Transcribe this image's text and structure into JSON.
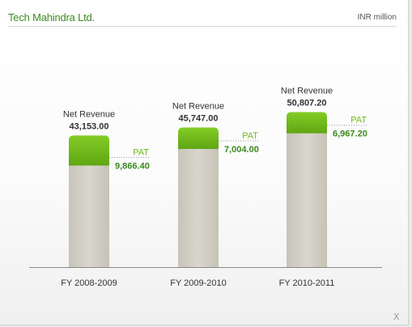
{
  "header": {
    "title": "Tech Mahindra Ltd.",
    "unit": "INR million"
  },
  "close_label": "X",
  "colors": {
    "pat": "#6fba1c",
    "rev": "#cfccc2",
    "accent_text": "#3b8a1e"
  },
  "chart_data": {
    "type": "bar",
    "categories": [
      "FY 2008-2009",
      "FY 2009-2010",
      "FY 2010-2011"
    ],
    "series": [
      {
        "name": "Net Revenue",
        "values": [
          43153.0,
          45747.0,
          50807.2
        ],
        "labels": [
          "43,153.00",
          "45,747.00",
          "50,807.20"
        ]
      },
      {
        "name": "PAT",
        "values": [
          9866.4,
          7004.0,
          6967.2
        ],
        "labels": [
          "9,866.40",
          "7,004.00",
          "6,967.20"
        ]
      }
    ],
    "ylim": [
      0,
      50807.2
    ]
  }
}
